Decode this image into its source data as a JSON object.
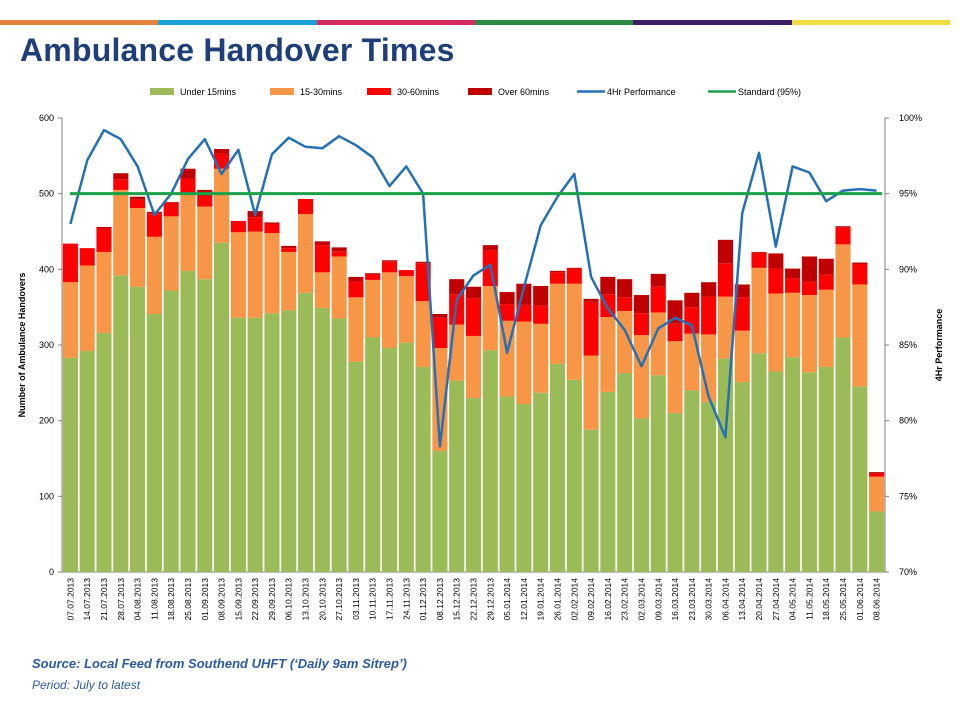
{
  "stripe_colors": [
    "#e5823b",
    "#1ba0d8",
    "#d12c5c",
    "#2e8b44",
    "#3d2063",
    "#f0dc3c"
  ],
  "title": "Ambulance Handover Times",
  "source": "Source: Local Feed from Southend UHFT (‘Daily 9am Sitrep’)",
  "period": "Period: July to latest",
  "chart_data": {
    "type": "bar",
    "stacked": true,
    "legend_position": "top",
    "categories": [
      "07.07.2013",
      "14.07.2013",
      "21.07.2013",
      "28.07.2013",
      "04.08.2013",
      "11.08.2013",
      "18.08.2013",
      "25.08.2013",
      "01.09.2013",
      "08.09.2013",
      "15.09.2013",
      "22.09.2013",
      "29.09.2013",
      "06.10.2013",
      "13.10.2013",
      "20.10.2013",
      "27.10.2013",
      "03.11.2013",
      "10.11.2013",
      "17.11.2013",
      "24.11.2013",
      "01.12.2013",
      "08.12.2013",
      "15.12.2013",
      "22.12.2013",
      "29.12.2013",
      "05.01.2014",
      "12.01.2014",
      "19.01.2014",
      "26.01.2014",
      "02.02.2014",
      "09.02.2014",
      "16.02.2014",
      "23.02.2014",
      "02.03.2014",
      "09.03.2014",
      "16.03.2014",
      "23.03.2014",
      "30.03.2014",
      "06.04.2014",
      "13.04.2014",
      "20.04.2014",
      "27.04.2014",
      "04.05.2014",
      "11.05.2014",
      "18.05.2014",
      "25.05.2014",
      "01.06.2014",
      "08.06.2014"
    ],
    "series": [
      {
        "name": "Under 15mins",
        "color": "#9bbb59",
        "axis": "left",
        "type": "bar",
        "values": [
          283,
          292,
          316,
          392,
          377,
          341,
          372,
          398,
          387,
          435,
          336,
          336,
          342,
          346,
          369,
          349,
          335,
          278,
          310,
          296,
          303,
          271,
          160,
          253,
          230,
          293,
          232,
          222,
          237,
          275,
          254,
          188,
          238,
          263,
          203,
          260,
          210,
          240,
          225,
          282,
          251,
          289,
          265,
          284,
          264,
          271,
          310,
          245,
          80
        ]
      },
      {
        "name": "15-30mins",
        "color": "#f79646",
        "axis": "left",
        "type": "bar",
        "values": [
          100,
          113,
          107,
          113,
          104,
          102,
          98,
          103,
          96,
          98,
          113,
          114,
          106,
          77,
          104,
          47,
          82,
          85,
          76,
          100,
          88,
          87,
          136,
          74,
          82,
          85,
          100,
          109,
          91,
          106,
          127,
          98,
          99,
          82,
          110,
          83,
          95,
          75,
          89,
          82,
          68,
          113,
          103,
          85,
          102,
          102,
          123,
          135,
          46
        ]
      },
      {
        "name": "30-60mins",
        "color": "#ff0000",
        "axis": "left",
        "type": "bar",
        "values": [
          51,
          23,
          31,
          14,
          11,
          31,
          18,
          19,
          14,
          20,
          15,
          19,
          12,
          5,
          20,
          36,
          7,
          21,
          8,
          14,
          8,
          50,
          40,
          40,
          50,
          47,
          22,
          22,
          24,
          15,
          20,
          71,
          30,
          18,
          29,
          34,
          23,
          35,
          50,
          44,
          44,
          20,
          33,
          19,
          18,
          20,
          22,
          27,
          4
        ]
      },
      {
        "name": "Over 60mins",
        "color": "#c00000",
        "axis": "left",
        "type": "bar",
        "values": [
          0,
          0,
          2,
          8,
          4,
          2,
          1,
          13,
          8,
          6,
          0,
          8,
          2,
          3,
          0,
          5,
          5,
          6,
          1,
          2,
          0,
          2,
          5,
          20,
          15,
          7,
          16,
          28,
          26,
          2,
          1,
          4,
          23,
          24,
          24,
          17,
          31,
          19,
          19,
          31,
          17,
          1,
          20,
          13,
          33,
          21,
          2,
          2,
          2
        ]
      },
      {
        "name": "4Hr Performance",
        "color": "#2670b5",
        "axis": "right",
        "type": "line",
        "values": [
          93.0,
          97.2,
          99.2,
          98.6,
          96.8,
          93.6,
          95.0,
          97.3,
          98.6,
          96.3,
          97.9,
          93.6,
          97.6,
          98.7,
          98.1,
          98.0,
          98.8,
          98.2,
          97.4,
          95.5,
          96.8,
          95.0,
          78.3,
          88.0,
          89.6,
          90.3,
          84.5,
          88.8,
          92.9,
          94.8,
          96.3,
          89.5,
          87.4,
          86.0,
          83.6,
          86.1,
          86.8,
          86.3,
          81.6,
          78.9,
          93.7,
          97.7,
          91.5,
          96.8,
          96.4,
          94.5,
          95.2,
          95.3,
          95.2
        ]
      },
      {
        "name": "Standard (95%)",
        "color": "#1aa14a",
        "axis": "right",
        "type": "line",
        "values": [
          95,
          95,
          95,
          95,
          95,
          95,
          95,
          95,
          95,
          95,
          95,
          95,
          95,
          95,
          95,
          95,
          95,
          95,
          95,
          95,
          95,
          95,
          95,
          95,
          95,
          95,
          95,
          95,
          95,
          95,
          95,
          95,
          95,
          95,
          95,
          95,
          95,
          95,
          95,
          95,
          95,
          95,
          95,
          95,
          95,
          95,
          95,
          95,
          95
        ]
      }
    ],
    "ylabel": "Number of Ambulance Handovers",
    "ylabel_right": "4Hr Performance",
    "ylim": [
      0,
      600
    ],
    "y_ticks": [
      "0",
      "100",
      "200",
      "300",
      "400",
      "500",
      "600"
    ],
    "ylim_right": [
      70,
      100
    ],
    "y_ticks_right": [
      "70%",
      "75%",
      "80%",
      "85%",
      "90%",
      "95%",
      "100%"
    ],
    "grid": false
  }
}
